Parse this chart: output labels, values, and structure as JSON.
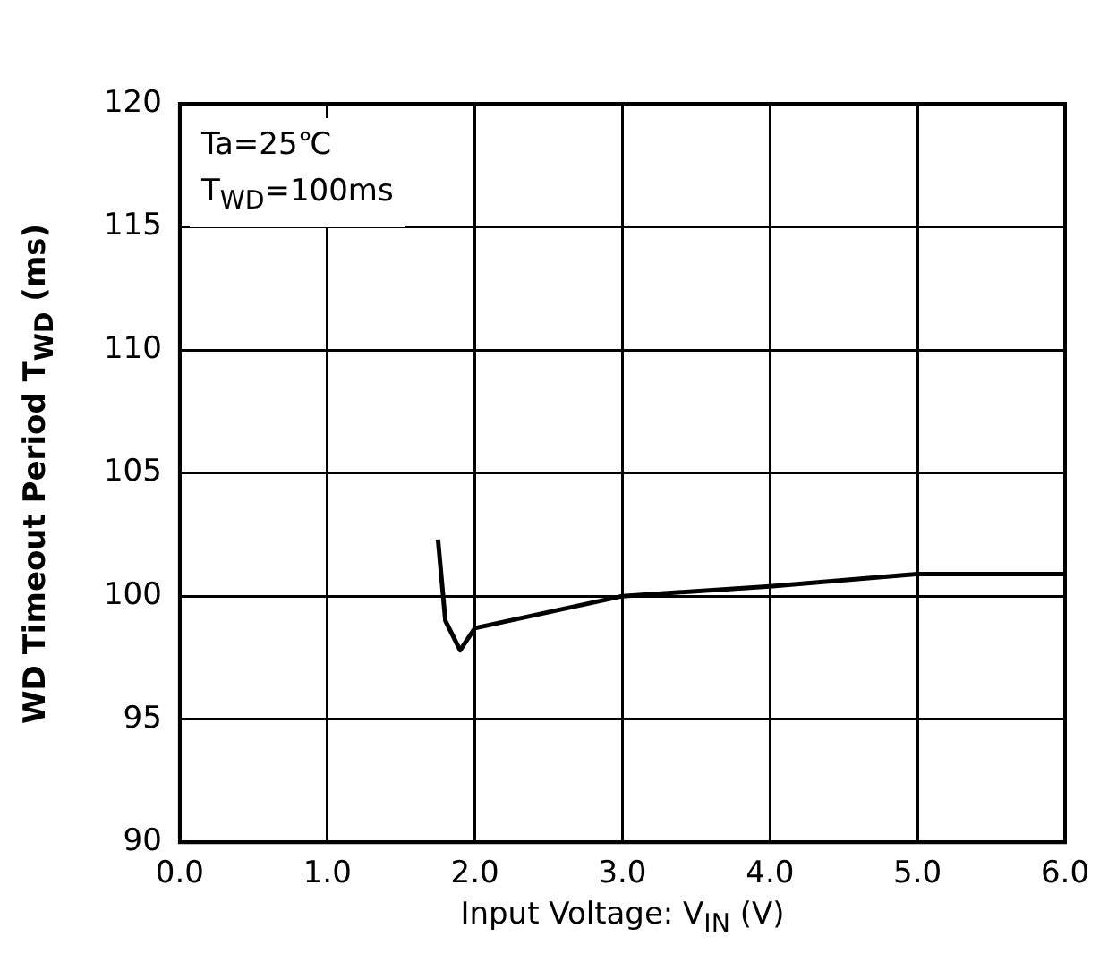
{
  "chart_data": {
    "type": "line",
    "xlabel": "Input Voltage:  V$_{IN}$ (V)",
    "ylabel": "WD Timeout Period T$_{WD}$  (ms)",
    "annotations": [
      "Ta=25℃",
      "T$_{WD}$=100ms"
    ],
    "x": [
      1.75,
      1.8,
      1.9,
      2.0,
      3.0,
      4.0,
      5.0,
      6.0
    ],
    "series": [
      {
        "color": "#000000",
        "values": [
          102.3,
          99.0,
          97.8,
          98.7,
          100.0,
          100.4,
          100.9,
          100.9
        ]
      }
    ],
    "xlim": [
      0,
      6
    ],
    "xticks": [
      {
        "value": 0,
        "label": "0.0"
      },
      {
        "value": 1,
        "label": "1.0"
      },
      {
        "value": 2,
        "label": "2.0"
      },
      {
        "value": 3,
        "label": "3.0"
      },
      {
        "value": 4,
        "label": "4.0"
      },
      {
        "value": 5,
        "label": "5.0"
      },
      {
        "value": 6,
        "label": "6.0"
      }
    ],
    "ylim": [
      90,
      120
    ],
    "yticks": [
      90,
      95,
      100,
      105,
      110,
      115,
      120
    ],
    "grid": true,
    "legend": false,
    "marker": "none",
    "line_style": "solid"
  }
}
